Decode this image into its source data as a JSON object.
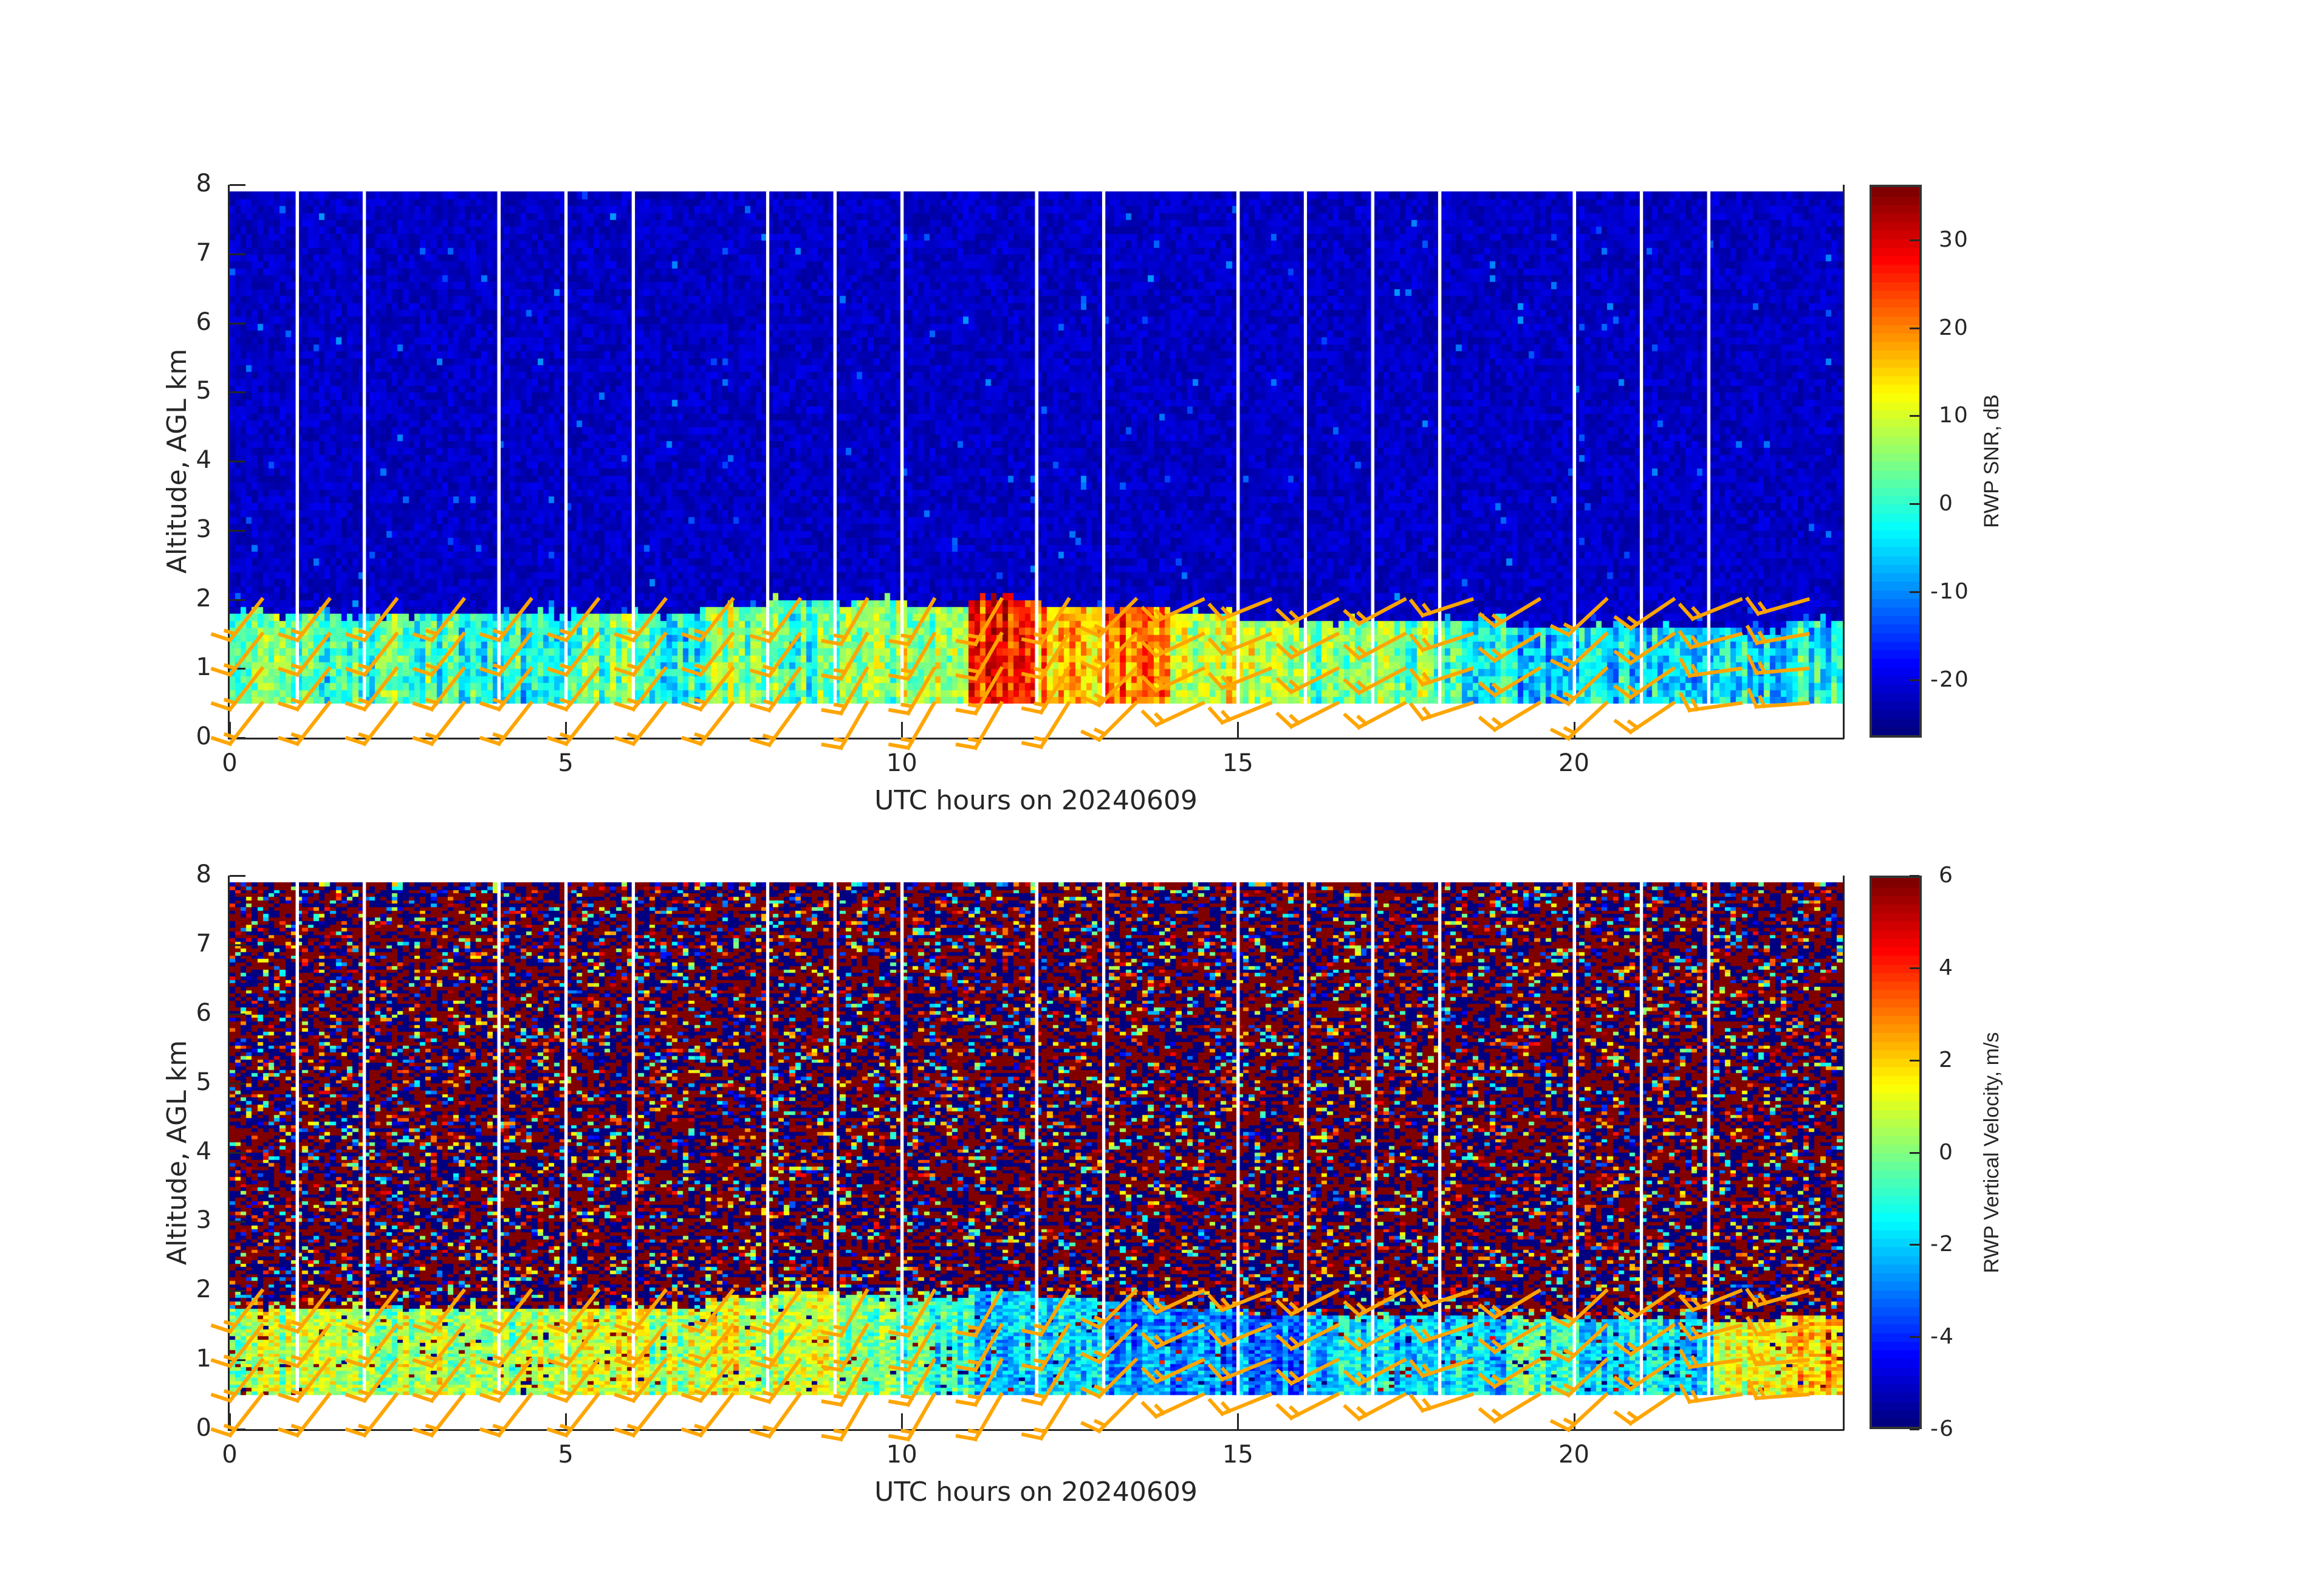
{
  "chart_data": [
    {
      "type": "heatmap",
      "xlabel": "UTC hours on 20240609",
      "ylabel": "Altitude, AGL km",
      "xlim": [
        0,
        24
      ],
      "ylim": [
        0,
        8
      ],
      "xticks": [
        "0",
        "5",
        "10",
        "15",
        "20"
      ],
      "yticks": [
        "0",
        "1",
        "2",
        "3",
        "4",
        "5",
        "6",
        "7",
        "8"
      ],
      "colorbar": {
        "label": "RWP SNR, dB",
        "colormap": "jet",
        "range": [
          -26.6,
          36.3
        ],
        "ticks": [
          "30",
          "20",
          "10",
          "0",
          "-10",
          "-20"
        ],
        "tick_values": [
          30,
          20,
          10,
          0,
          -10,
          -20
        ]
      },
      "data_altitude_range_km": [
        0.5,
        7.9
      ],
      "data_gap_hours": [
        1,
        2,
        4,
        5,
        6,
        8,
        9,
        10,
        12,
        13,
        15,
        16,
        17,
        18,
        20,
        21,
        22
      ],
      "boundary_layer_top_km": [
        1.75,
        1.75,
        1.75,
        1.75,
        1.75,
        1.75,
        1.75,
        1.9,
        2.0,
        1.95,
        1.9,
        2.0,
        1.9,
        1.85,
        1.75,
        1.65,
        1.65,
        1.65,
        1.65,
        1.6,
        1.6,
        1.6,
        1.55,
        1.65
      ],
      "boundary_layer_value_by_hour": [
        2,
        0,
        2,
        0,
        -2,
        3,
        -2,
        5,
        2,
        5,
        8,
        25,
        18,
        22,
        10,
        8,
        5,
        5,
        0,
        -5,
        -3,
        -5,
        -5,
        -3
      ],
      "free_troposphere_value": -22,
      "grid": false
    },
    {
      "type": "heatmap",
      "xlabel": "UTC hours on 20240609",
      "ylabel": "Altitude, AGL km",
      "xlim": [
        0,
        24
      ],
      "ylim": [
        0,
        8
      ],
      "xticks": [
        "0",
        "5",
        "10",
        "15",
        "20"
      ],
      "yticks": [
        "0",
        "1",
        "2",
        "3",
        "4",
        "5",
        "6",
        "7",
        "8"
      ],
      "colorbar": {
        "label": "RWP Vertical Velocity, m/s",
        "colormap": "jet",
        "range": [
          -6,
          6
        ],
        "ticks": [
          "6",
          "4",
          "2",
          "0",
          "-2",
          "-4",
          "-6"
        ],
        "tick_values": [
          6,
          4,
          2,
          0,
          -2,
          -4,
          -6
        ]
      },
      "data_altitude_range_km": [
        0.5,
        7.9
      ],
      "data_gap_hours": [
        1,
        2,
        4,
        5,
        6,
        8,
        9,
        10,
        12,
        13,
        15,
        16,
        17,
        18,
        20,
        21,
        22
      ],
      "boundary_layer_top_km": [
        1.75,
        1.75,
        1.75,
        1.75,
        1.75,
        1.75,
        1.75,
        1.9,
        2.0,
        1.95,
        1.9,
        2.0,
        1.9,
        1.85,
        1.75,
        1.65,
        1.65,
        1.65,
        1.65,
        1.6,
        1.6,
        1.6,
        1.55,
        1.65
      ],
      "boundary_layer_value_by_hour": [
        0.5,
        0.5,
        0.5,
        0.5,
        0.5,
        1,
        0.5,
        1,
        0.5,
        0,
        -1,
        -2,
        -2,
        -3,
        -3,
        -3,
        -2,
        -2,
        -2,
        -1,
        -2,
        -2,
        1,
        2
      ],
      "free_troposphere_value": "noise, -6 to 6",
      "grid": false
    }
  ],
  "wind_barbs": {
    "color": "#FFA500",
    "levels_km": [
      0.5,
      1.0,
      1.5,
      2.0
    ],
    "hours": [
      0.5,
      1.5,
      2.5,
      3.5,
      4.5,
      5.5,
      6.5,
      7.5,
      8.5,
      9.5,
      10.5,
      11.5,
      12.5,
      13.5,
      14.5,
      15.5,
      16.5,
      17.5,
      18.5,
      19.5,
      20.5,
      21.5,
      22.5,
      23.5
    ],
    "wind_from_deg": [
      [
        218,
        218,
        218,
        218
      ],
      [
        218,
        218,
        218,
        218
      ],
      [
        218,
        218,
        218,
        218
      ],
      [
        218,
        218,
        218,
        218
      ],
      [
        218,
        218,
        218,
        218
      ],
      [
        218,
        218,
        218,
        218
      ],
      [
        218,
        218,
        218,
        218
      ],
      [
        218,
        218,
        218,
        218
      ],
      [
        216,
        216,
        216,
        216
      ],
      [
        210,
        210,
        210,
        210
      ],
      [
        210,
        210,
        210,
        210
      ],
      [
        210,
        210,
        210,
        210
      ],
      [
        212,
        212,
        212,
        212
      ],
      [
        225,
        225,
        225,
        225
      ],
      [
        245,
        245,
        245,
        245
      ],
      [
        248,
        248,
        248,
        248
      ],
      [
        243,
        243,
        243,
        243
      ],
      [
        242,
        242,
        242,
        242
      ],
      [
        252,
        252,
        252,
        252
      ],
      [
        239,
        239,
        239,
        239
      ],
      [
        227,
        227,
        227,
        227
      ],
      [
        236,
        236,
        236,
        236
      ],
      [
        262,
        262,
        255,
        248
      ],
      [
        266,
        265,
        260,
        254
      ]
    ]
  }
}
